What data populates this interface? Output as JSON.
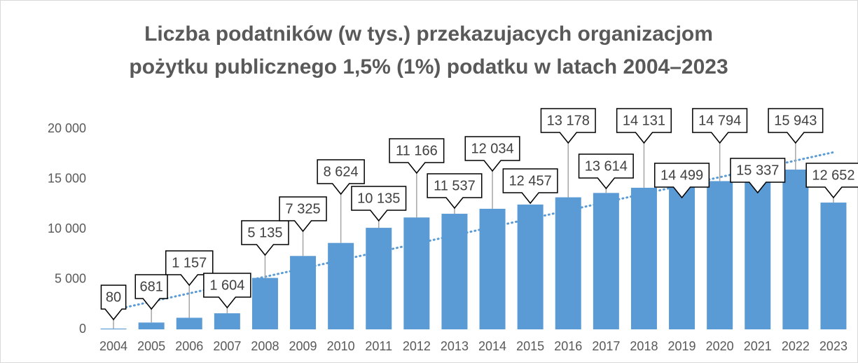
{
  "chart_data": {
    "type": "bar",
    "title": [
      "Liczba podatników (w tys.) przekazujacych organizacjom",
      "pożytku publicznego 1,5% (1%) podatku w latach 2004–2023"
    ],
    "categories": [
      "2004",
      "2005",
      "2006",
      "2007",
      "2008",
      "2009",
      "2010",
      "2011",
      "2012",
      "2013",
      "2014",
      "2015",
      "2016",
      "2017",
      "2018",
      "2019",
      "2020",
      "2021",
      "2022",
      "2023"
    ],
    "values": [
      80,
      681,
      1157,
      1604,
      5135,
      7325,
      8624,
      10135,
      11166,
      11537,
      12034,
      12457,
      13178,
      13614,
      14131,
      14499,
      14794,
      15337,
      15943,
      12652
    ],
    "value_labels": [
      "80",
      "681",
      "1 157",
      "1 604",
      "5 135",
      "7 325",
      "8 624",
      "10 135",
      "11 166",
      "11 537",
      "12 034",
      "12 457",
      "13 178",
      "13 614",
      "14 131",
      "14 499",
      "14 794",
      "15 337",
      "15 943",
      "12 652"
    ],
    "color": "#5b9bd5",
    "ylim": [
      0,
      20000
    ],
    "yticks": [
      0,
      {
        "value": 5000,
        "label": "5 000"
      },
      {
        "value": 10000,
        "label": "10 000"
      },
      {
        "value": 15000,
        "label": "15 000"
      },
      {
        "value": 20000,
        "label": "20 000"
      }
    ],
    "grid": false,
    "trendline": "linear"
  }
}
